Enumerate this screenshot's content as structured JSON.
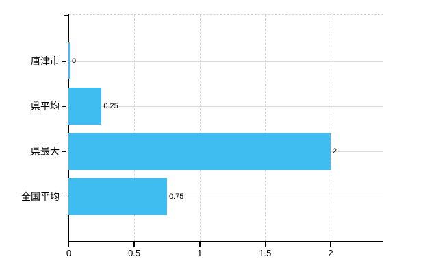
{
  "chart_data": {
    "type": "bar",
    "orientation": "horizontal",
    "title": "",
    "categories": [
      "唐津市",
      "県平均",
      "県最大",
      "全国平均"
    ],
    "values": [
      0,
      0.25,
      2,
      0.75
    ],
    "value_labels": [
      "0",
      "0.25",
      "2",
      "0.75"
    ],
    "x_axis": {
      "tick_labels": [
        "0",
        "0.5",
        "1",
        "1.5",
        "2"
      ],
      "tick_values": [
        0,
        0.5,
        1,
        1.5,
        2
      ],
      "range": [
        0,
        2.4
      ]
    },
    "y_axis": {
      "label": ""
    },
    "grid": true,
    "legend": false,
    "colors": {
      "bar": "#3fbcf0",
      "axis": "#000000",
      "grid_horizontal": "#d8ddd4",
      "grid_vertical": "#d4d4d4",
      "text": "#000000"
    }
  }
}
